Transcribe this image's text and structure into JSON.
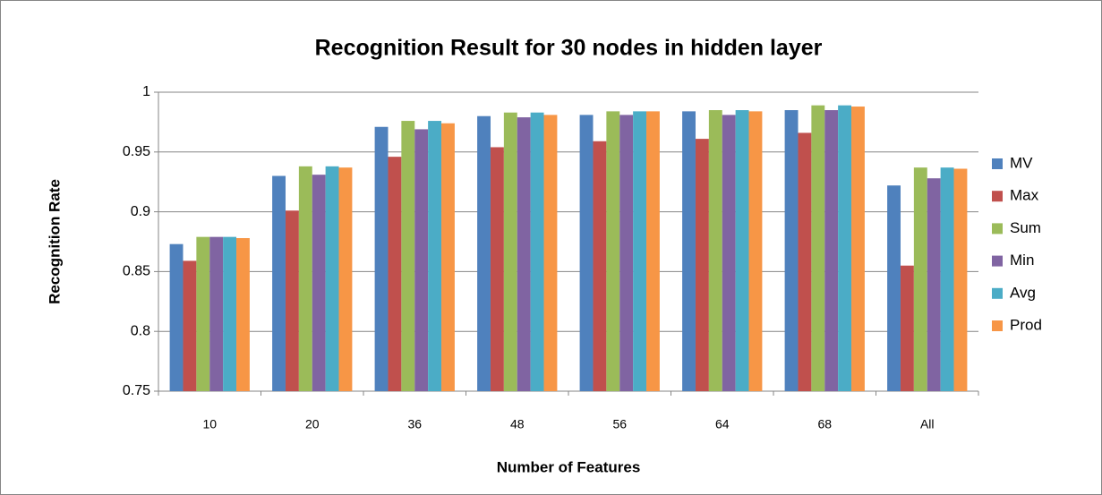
{
  "chart_data": {
    "type": "bar",
    "title": "Recognition Result for 30 nodes in hidden layer",
    "x_label": "Number of Features",
    "y_label": "Recognition Rate",
    "categories": [
      "10",
      "20",
      "36",
      "48",
      "56",
      "64",
      "68",
      "All"
    ],
    "series": [
      {
        "name": "MV",
        "color": "#4f81bd",
        "values": [
          0.873,
          0.93,
          0.971,
          0.98,
          0.981,
          0.984,
          0.985,
          0.922
        ]
      },
      {
        "name": "Max",
        "color": "#c0504d",
        "values": [
          0.859,
          0.901,
          0.946,
          0.954,
          0.959,
          0.961,
          0.966,
          0.855
        ]
      },
      {
        "name": "Sum",
        "color": "#9bbb59",
        "values": [
          0.879,
          0.938,
          0.976,
          0.983,
          0.984,
          0.985,
          0.989,
          0.937
        ]
      },
      {
        "name": "Min",
        "color": "#8064a2",
        "values": [
          0.879,
          0.931,
          0.969,
          0.979,
          0.981,
          0.981,
          0.985,
          0.928
        ]
      },
      {
        "name": "Avg",
        "color": "#4bacc6",
        "values": [
          0.879,
          0.938,
          0.976,
          0.983,
          0.984,
          0.985,
          0.989,
          0.937
        ]
      },
      {
        "name": "Prod",
        "color": "#f79646",
        "values": [
          0.878,
          0.937,
          0.974,
          0.981,
          0.984,
          0.984,
          0.988,
          0.936
        ]
      }
    ],
    "ylim": [
      0.75,
      1
    ],
    "yticks": [
      0.75,
      0.8,
      0.85,
      0.9,
      0.95,
      1
    ],
    "grid": true,
    "legend": "right"
  }
}
